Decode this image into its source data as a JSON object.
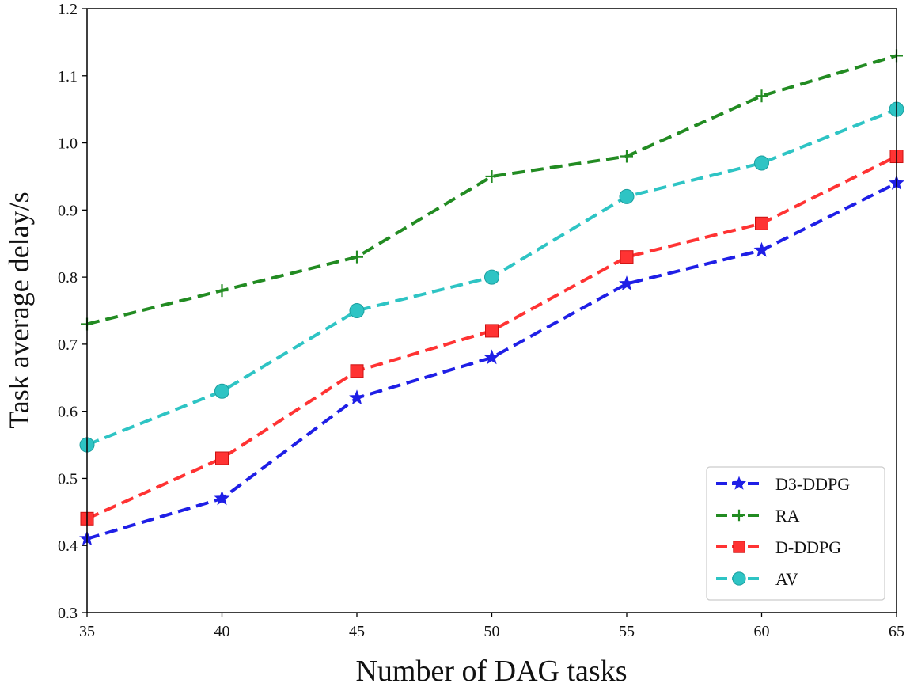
{
  "chart_data": {
    "type": "line",
    "title": "",
    "xlabel": "Number of DAG tasks",
    "ylabel": "Task average delay/s",
    "x": [
      35,
      40,
      45,
      50,
      55,
      60,
      65
    ],
    "xlim": [
      35,
      65
    ],
    "ylim": [
      0.3,
      1.2
    ],
    "xticks": [
      "35",
      "40",
      "45",
      "50",
      "55",
      "60",
      "65"
    ],
    "yticks": [
      "0.3",
      "0.4",
      "0.5",
      "0.6",
      "0.7",
      "0.8",
      "0.9",
      "1.0",
      "1.1",
      "1.2"
    ],
    "grid": false,
    "legend_position": "bottom-right",
    "series": [
      {
        "name": "D3-DDPG",
        "color": "#1f1fe6",
        "marker": "star",
        "values": [
          0.41,
          0.47,
          0.62,
          0.68,
          0.79,
          0.84,
          0.94
        ]
      },
      {
        "name": "RA",
        "color": "#228b22",
        "marker": "plus",
        "values": [
          0.73,
          0.78,
          0.83,
          0.95,
          0.98,
          1.07,
          1.13
        ]
      },
      {
        "name": "D-DDPG",
        "color": "#ff3333",
        "marker": "square",
        "values": [
          0.44,
          0.53,
          0.66,
          0.72,
          0.83,
          0.88,
          0.98
        ]
      },
      {
        "name": "AV",
        "color": "#2ec4c4",
        "marker": "circle",
        "values": [
          0.55,
          0.63,
          0.75,
          0.8,
          0.92,
          0.97,
          1.05
        ]
      }
    ]
  }
}
